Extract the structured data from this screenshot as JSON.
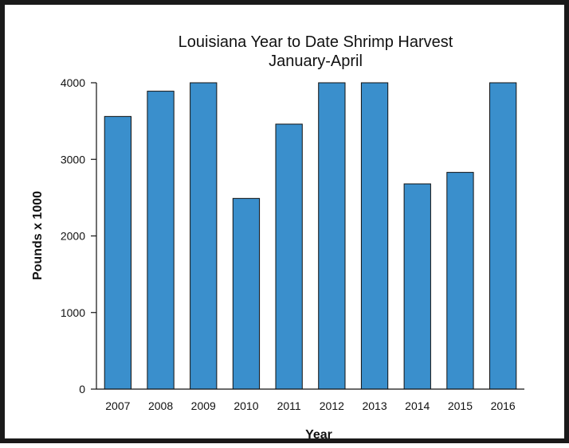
{
  "chart_data": {
    "type": "bar",
    "title": "Louisiana Year to Date Shrimp Harvest",
    "subtitle": "January-April",
    "xlabel": "Year",
    "ylabel": "Pounds x 1000",
    "categories": [
      "2007",
      "2008",
      "2009",
      "2010",
      "2011",
      "2012",
      "2013",
      "2014",
      "2015",
      "2016"
    ],
    "values": [
      3560,
      3890,
      4000,
      2490,
      3460,
      4000,
      4000,
      2680,
      2830,
      4000
    ],
    "ylim": [
      0,
      4000
    ],
    "yticks": [
      0,
      1000,
      2000,
      3000,
      4000
    ],
    "ytick_labels": [
      "0",
      "1000",
      "2000",
      "3000",
      "4000"
    ],
    "bar_color": "#3a8fcc",
    "grid": false,
    "legend": "none"
  }
}
